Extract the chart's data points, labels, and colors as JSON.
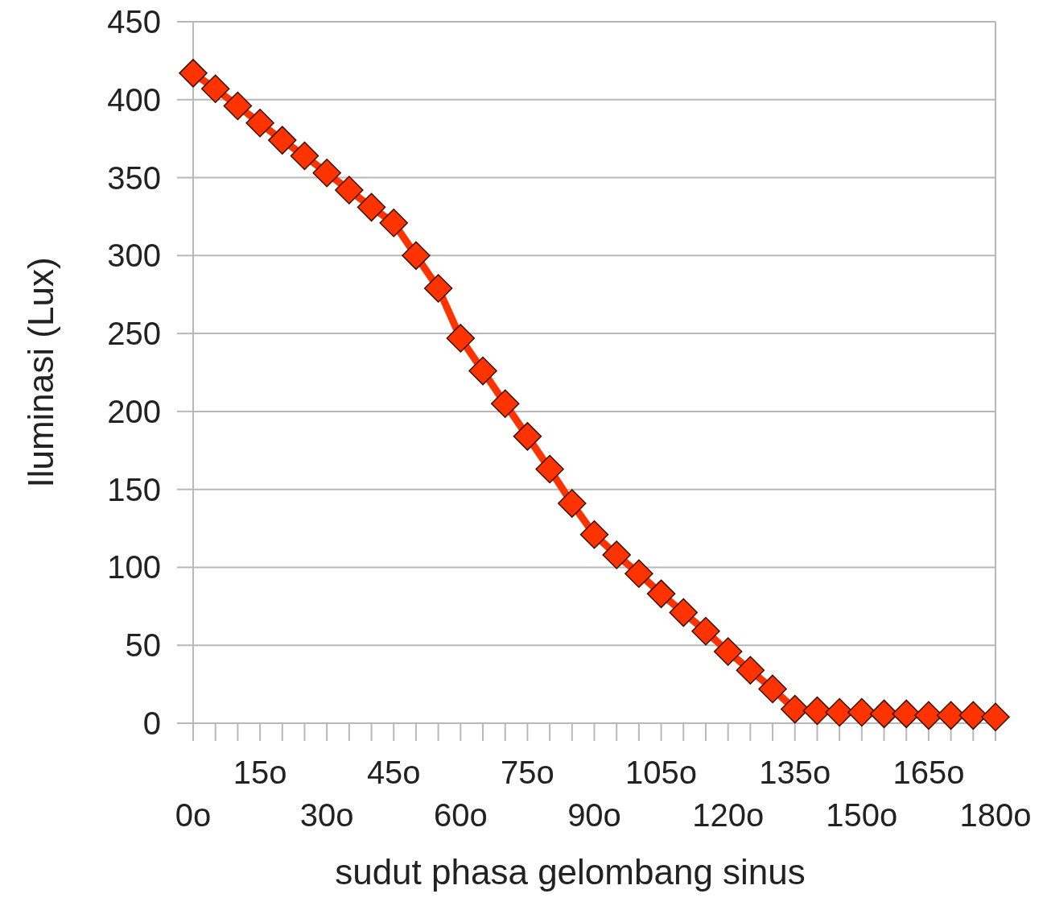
{
  "chart_data": {
    "type": "line",
    "xlabel": "sudut phasa gelombang sinus",
    "ylabel": "Iluminasi (Lux)",
    "categories": [
      "0o",
      null,
      null,
      "15o",
      null,
      null,
      "30o",
      null,
      null,
      "45o",
      null,
      null,
      "60o",
      null,
      null,
      "75o",
      null,
      null,
      "90o",
      null,
      null,
      "105o",
      null,
      null,
      "120o",
      null,
      null,
      "135o",
      null,
      null,
      "150o",
      null,
      null,
      "165o",
      null,
      null,
      "180o"
    ],
    "series": [
      {
        "color": "#ff3300",
        "values": [
          417,
          407,
          396,
          385,
          374,
          364,
          353,
          342,
          331,
          321,
          300,
          279,
          247,
          226,
          205,
          184,
          163,
          141,
          121,
          108,
          96,
          83,
          71,
          59,
          46,
          34,
          22,
          9,
          8,
          7,
          7,
          6,
          6,
          5,
          5,
          5,
          4
        ]
      }
    ],
    "ylim": [
      0,
      450
    ],
    "yticks": [
      0,
      50,
      100,
      150,
      200,
      250,
      300,
      350,
      400,
      450
    ],
    "grid": "y",
    "marker": "diamond",
    "line_style": "solid"
  }
}
